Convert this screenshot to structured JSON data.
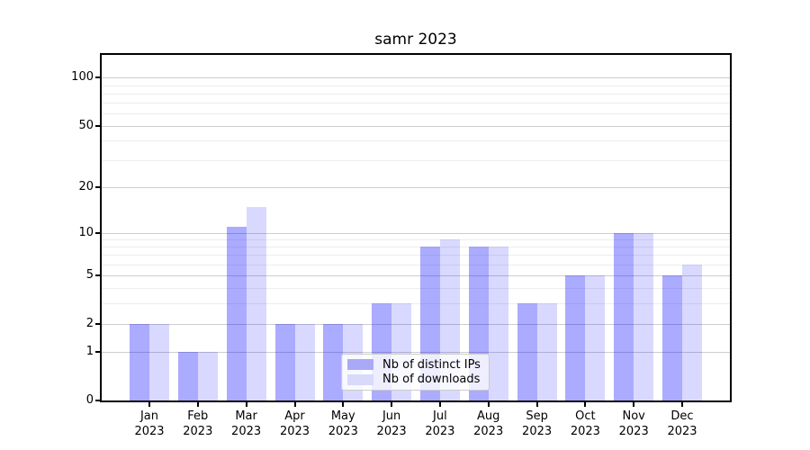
{
  "chart_data": {
    "type": "bar",
    "title": "samr 2023",
    "categories": [
      "Jan",
      "Feb",
      "Mar",
      "Apr",
      "May",
      "Jun",
      "Jul",
      "Aug",
      "Sep",
      "Oct",
      "Nov",
      "Dec"
    ],
    "category_year": "2023",
    "series": [
      {
        "name": "Nb of distinct IPs",
        "hex": "#a9a9f7",
        "base_color": "#0000ff",
        "alpha": 0.33,
        "values": [
          2,
          1,
          11,
          2,
          2,
          3,
          8,
          8,
          3,
          5,
          10,
          5
        ]
      },
      {
        "name": "Nb of downloads",
        "hex": "#d9d9fb",
        "base_color": "#0000ff",
        "alpha": 0.15,
        "values": [
          2,
          1,
          15,
          2,
          2,
          3,
          9,
          8,
          3,
          5,
          10,
          6
        ]
      }
    ],
    "yscale": "log1p",
    "y_major_ticks": [
      0,
      1,
      2,
      5,
      10,
      20,
      50,
      100
    ],
    "y_minor_ticks": [
      3,
      4,
      6,
      7,
      8,
      9,
      30,
      40,
      60,
      70,
      80,
      90
    ],
    "ylim": [
      0,
      113
    ],
    "grid": true,
    "legend_position": "lower center",
    "grid_major_color": "#cdcdcd",
    "grid_minor_color": "#ededed"
  }
}
